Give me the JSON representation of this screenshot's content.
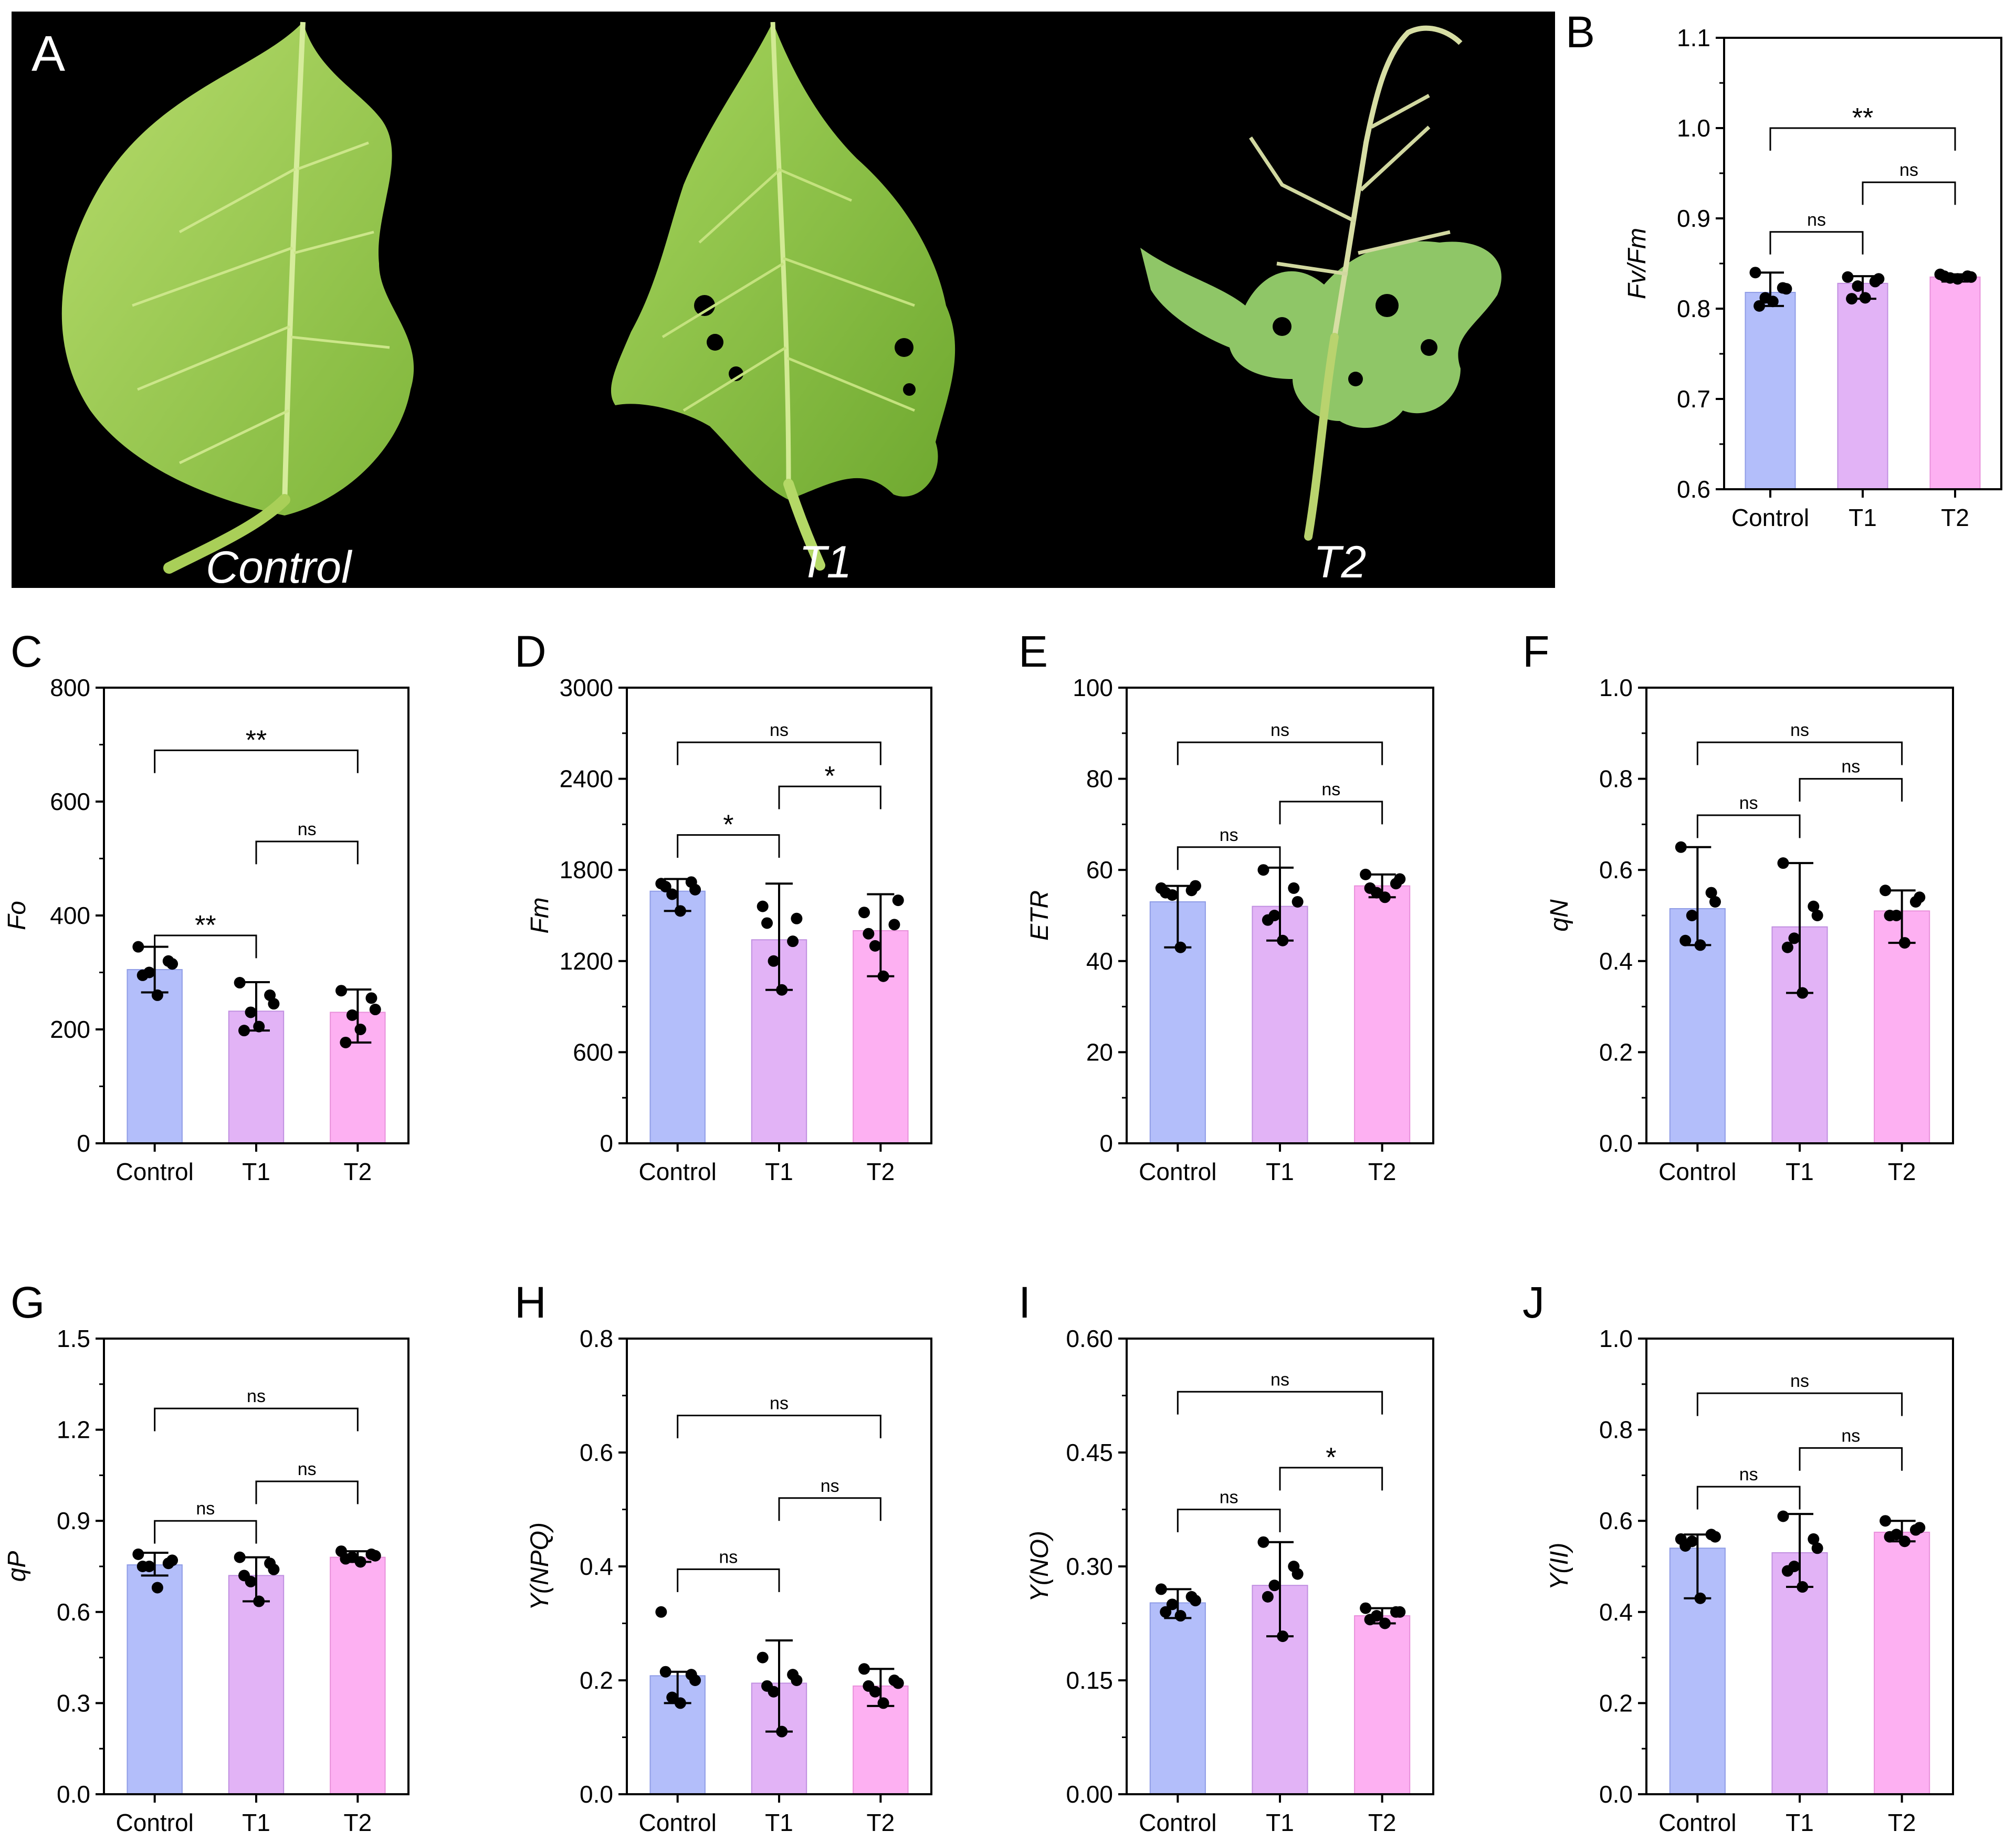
{
  "photo_panel": {
    "letter": "A",
    "labels": [
      "Control",
      "T1",
      "T2"
    ]
  },
  "colors": {
    "control": "#b3befa",
    "t1": "#e2b3f6",
    "t2": "#fdb0f2",
    "photo_background": "#000000"
  },
  "chart_data": [
    {
      "type": "bar",
      "panel": "B",
      "ylabel": "Fv/Fm",
      "categories": [
        "Control",
        "T1",
        "T2"
      ],
      "ylim": [
        0.6,
        1.1
      ],
      "yticks": [
        "0.6",
        "0.7",
        "0.8",
        "0.9",
        "1.0",
        "1.1"
      ],
      "values": [
        0.818,
        0.828,
        0.835
      ],
      "err_low": [
        0.803,
        0.811,
        0.83
      ],
      "err_high": [
        0.84,
        0.836,
        0.838
      ],
      "points": [
        [
          0.84,
          0.823,
          0.812,
          0.808,
          0.822,
          0.803
        ],
        [
          0.835,
          0.83,
          0.825,
          0.812,
          0.833,
          0.811
        ],
        [
          0.838,
          0.836,
          0.834,
          0.833,
          0.835,
          0.836
        ]
      ],
      "comparisons": [
        {
          "from": 0,
          "to": 1,
          "y": 0.885,
          "label": "ns"
        },
        {
          "from": 1,
          "to": 2,
          "y": 0.94,
          "label": "ns"
        },
        {
          "from": 0,
          "to": 2,
          "y": 1.0,
          "label": "**"
        }
      ]
    },
    {
      "type": "bar",
      "panel": "C",
      "ylabel": "Fo",
      "categories": [
        "Control",
        "T1",
        "T2"
      ],
      "ylim": [
        0,
        800
      ],
      "yticks": [
        "0",
        "200",
        "400",
        "600",
        "800"
      ],
      "values": [
        305,
        232,
        230
      ],
      "err_low": [
        265,
        198,
        177
      ],
      "err_high": [
        345,
        283,
        270
      ],
      "points": [
        [
          345,
          320,
          300,
          260,
          315,
          295
        ],
        [
          282,
          260,
          230,
          205,
          245,
          198
        ],
        [
          268,
          255,
          225,
          200,
          235,
          177
        ]
      ],
      "comparisons": [
        {
          "from": 0,
          "to": 1,
          "y": 365,
          "label": "**"
        },
        {
          "from": 1,
          "to": 2,
          "y": 530,
          "label": "ns"
        },
        {
          "from": 0,
          "to": 2,
          "y": 690,
          "label": "**"
        }
      ]
    },
    {
      "type": "bar",
      "panel": "D",
      "ylabel": "Fm",
      "categories": [
        "Control",
        "T1",
        "T2"
      ],
      "ylim": [
        0,
        3000
      ],
      "yticks": [
        "0",
        "600",
        "1200",
        "1800",
        "2400",
        "3000"
      ],
      "values": [
        1660,
        1340,
        1400
      ],
      "err_low": [
        1530,
        1010,
        1100
      ],
      "err_high": [
        1740,
        1710,
        1640
      ],
      "points": [
        [
          1710,
          1720,
          1640,
          1530,
          1670,
          1690
        ],
        [
          1560,
          1330,
          1200,
          1010,
          1480,
          1450
        ],
        [
          1520,
          1440,
          1300,
          1100,
          1600,
          1380
        ]
      ],
      "comparisons": [
        {
          "from": 0,
          "to": 1,
          "y": 2030,
          "label": "*"
        },
        {
          "from": 1,
          "to": 2,
          "y": 2350,
          "label": "*"
        },
        {
          "from": 0,
          "to": 2,
          "y": 2640,
          "label": "ns"
        }
      ]
    },
    {
      "type": "bar",
      "panel": "E",
      "ylabel": "ETR",
      "categories": [
        "Control",
        "T1",
        "T2"
      ],
      "ylim": [
        0,
        100
      ],
      "yticks": [
        "0",
        "20",
        "40",
        "60",
        "80",
        "100"
      ],
      "values": [
        53,
        52,
        56.5
      ],
      "err_low": [
        43,
        44.5,
        54
      ],
      "err_high": [
        56.5,
        60.5,
        59
      ],
      "points": [
        [
          56,
          55.5,
          54.5,
          43,
          56.5,
          55
        ],
        [
          60,
          56,
          50,
          44.5,
          53,
          49
        ],
        [
          59,
          57,
          55,
          54,
          58,
          56
        ]
      ],
      "comparisons": [
        {
          "from": 0,
          "to": 1,
          "y": 65,
          "label": "ns"
        },
        {
          "from": 1,
          "to": 2,
          "y": 75,
          "label": "ns"
        },
        {
          "from": 0,
          "to": 2,
          "y": 88,
          "label": "ns"
        }
      ]
    },
    {
      "type": "bar",
      "panel": "F",
      "ylabel": "qN",
      "categories": [
        "Control",
        "T1",
        "T2"
      ],
      "ylim": [
        0,
        1
      ],
      "yticks": [
        "0.0",
        "0.2",
        "0.4",
        "0.6",
        "0.8",
        "1.0"
      ],
      "values": [
        0.515,
        0.475,
        0.51
      ],
      "err_low": [
        0.435,
        0.33,
        0.44
      ],
      "err_high": [
        0.65,
        0.615,
        0.555
      ],
      "points": [
        [
          0.65,
          0.55,
          0.5,
          0.435,
          0.53,
          0.445
        ],
        [
          0.615,
          0.52,
          0.45,
          0.33,
          0.5,
          0.43
        ],
        [
          0.555,
          0.53,
          0.5,
          0.44,
          0.54,
          0.5
        ]
      ],
      "comparisons": [
        {
          "from": 0,
          "to": 1,
          "y": 0.72,
          "label": "ns"
        },
        {
          "from": 1,
          "to": 2,
          "y": 0.8,
          "label": "ns"
        },
        {
          "from": 0,
          "to": 2,
          "y": 0.88,
          "label": "ns"
        }
      ]
    },
    {
      "type": "bar",
      "panel": "G",
      "ylabel": "qP",
      "categories": [
        "Control",
        "T1",
        "T2"
      ],
      "ylim": [
        0,
        1.5
      ],
      "yticks": [
        "0.0",
        "0.3",
        "0.6",
        "0.9",
        "1.2",
        "1.5"
      ],
      "values": [
        0.755,
        0.72,
        0.78
      ],
      "err_low": [
        0.72,
        0.635,
        0.765
      ],
      "err_high": [
        0.795,
        0.78,
        0.8
      ],
      "points": [
        [
          0.79,
          0.76,
          0.75,
          0.68,
          0.77,
          0.75
        ],
        [
          0.78,
          0.76,
          0.7,
          0.635,
          0.74,
          0.72
        ],
        [
          0.8,
          0.79,
          0.78,
          0.765,
          0.785,
          0.775
        ]
      ],
      "comparisons": [
        {
          "from": 0,
          "to": 1,
          "y": 0.9,
          "label": "ns"
        },
        {
          "from": 1,
          "to": 2,
          "y": 1.03,
          "label": "ns"
        },
        {
          "from": 0,
          "to": 2,
          "y": 1.27,
          "label": "ns"
        }
      ]
    },
    {
      "type": "bar",
      "panel": "H",
      "ylabel": "Y(NPQ)",
      "categories": [
        "Control",
        "T1",
        "T2"
      ],
      "ylim": [
        0,
        0.8
      ],
      "yticks": [
        "0.0",
        "0.2",
        "0.4",
        "0.6",
        "0.8"
      ],
      "values": [
        0.208,
        0.195,
        0.19
      ],
      "err_low": [
        0.16,
        0.11,
        0.155
      ],
      "err_high": [
        0.215,
        0.27,
        0.22
      ],
      "points": [
        [
          0.32,
          0.21,
          0.17,
          0.16,
          0.2,
          0.215
        ],
        [
          0.24,
          0.21,
          0.18,
          0.11,
          0.2,
          0.19
        ],
        [
          0.22,
          0.2,
          0.18,
          0.16,
          0.195,
          0.19
        ]
      ],
      "comparisons": [
        {
          "from": 0,
          "to": 1,
          "y": 0.395,
          "label": "ns"
        },
        {
          "from": 1,
          "to": 2,
          "y": 0.52,
          "label": "ns"
        },
        {
          "from": 0,
          "to": 2,
          "y": 0.665,
          "label": "ns"
        }
      ]
    },
    {
      "type": "bar",
      "panel": "I",
      "ylabel": "Y(NO)",
      "categories": [
        "Control",
        "T1",
        "T2"
      ],
      "ylim": [
        0,
        0.6
      ],
      "yticks": [
        "0.00",
        "0.15",
        "0.30",
        "0.45",
        "0.60"
      ],
      "values": [
        0.252,
        0.275,
        0.235
      ],
      "err_low": [
        0.232,
        0.208,
        0.225
      ],
      "err_high": [
        0.27,
        0.332,
        0.245
      ],
      "points": [
        [
          0.27,
          0.26,
          0.25,
          0.235,
          0.255,
          0.24
        ],
        [
          0.332,
          0.3,
          0.275,
          0.208,
          0.29,
          0.26
        ],
        [
          0.245,
          0.24,
          0.235,
          0.225,
          0.24,
          0.23
        ]
      ],
      "comparisons": [
        {
          "from": 0,
          "to": 1,
          "y": 0.375,
          "label": "ns"
        },
        {
          "from": 1,
          "to": 2,
          "y": 0.43,
          "label": "*"
        },
        {
          "from": 0,
          "to": 2,
          "y": 0.53,
          "label": "ns"
        }
      ]
    },
    {
      "type": "bar",
      "panel": "J",
      "ylabel": "Y(II)",
      "categories": [
        "Control",
        "T1",
        "T2"
      ],
      "ylim": [
        0,
        1
      ],
      "yticks": [
        "0.0",
        "0.2",
        "0.4",
        "0.6",
        "0.8",
        "1.0"
      ],
      "values": [
        0.54,
        0.53,
        0.575
      ],
      "err_low": [
        0.43,
        0.455,
        0.555
      ],
      "err_high": [
        0.57,
        0.615,
        0.6
      ],
      "points": [
        [
          0.56,
          0.57,
          0.555,
          0.43,
          0.565,
          0.545
        ],
        [
          0.61,
          0.56,
          0.5,
          0.455,
          0.54,
          0.49
        ],
        [
          0.6,
          0.58,
          0.57,
          0.555,
          0.585,
          0.565
        ]
      ],
      "comparisons": [
        {
          "from": 0,
          "to": 1,
          "y": 0.675,
          "label": "ns"
        },
        {
          "from": 1,
          "to": 2,
          "y": 0.76,
          "label": "ns"
        },
        {
          "from": 0,
          "to": 2,
          "y": 0.88,
          "label": "ns"
        }
      ]
    }
  ]
}
